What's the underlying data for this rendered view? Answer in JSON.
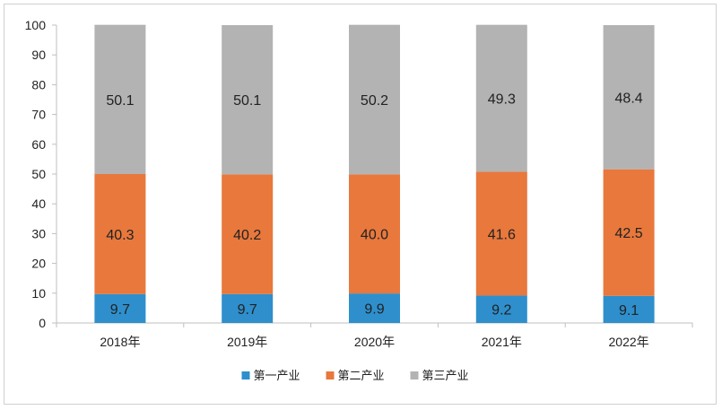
{
  "chart_data": {
    "type": "bar",
    "stacked": true,
    "categories": [
      "2018年",
      "2019年",
      "2020年",
      "2021年",
      "2022年"
    ],
    "series": [
      {
        "name": "第一产业",
        "color": "#2e8fcc",
        "values": [
          9.7,
          9.7,
          9.9,
          9.2,
          9.1
        ]
      },
      {
        "name": "第二产业",
        "color": "#e8783c",
        "values": [
          40.3,
          40.2,
          40.0,
          41.6,
          42.5
        ]
      },
      {
        "name": "第三产业",
        "color": "#b3b3b3",
        "values": [
          50.1,
          50.1,
          50.2,
          49.3,
          48.4
        ]
      }
    ],
    "value_labels": [
      [
        "9.7",
        "9.7",
        "9.9",
        "9.2",
        "9.1"
      ],
      [
        "40.3",
        "40.2",
        "40.0",
        "41.6",
        "42.5"
      ],
      [
        "50.1",
        "50.1",
        "50.2",
        "49.3",
        "48.4"
      ]
    ],
    "yticks": [
      "0",
      "10",
      "20",
      "30",
      "40",
      "50",
      "60",
      "70",
      "80",
      "90",
      "100"
    ],
    "ylim": [
      0,
      100
    ],
    "grid": false,
    "legend_position": "bottom"
  }
}
